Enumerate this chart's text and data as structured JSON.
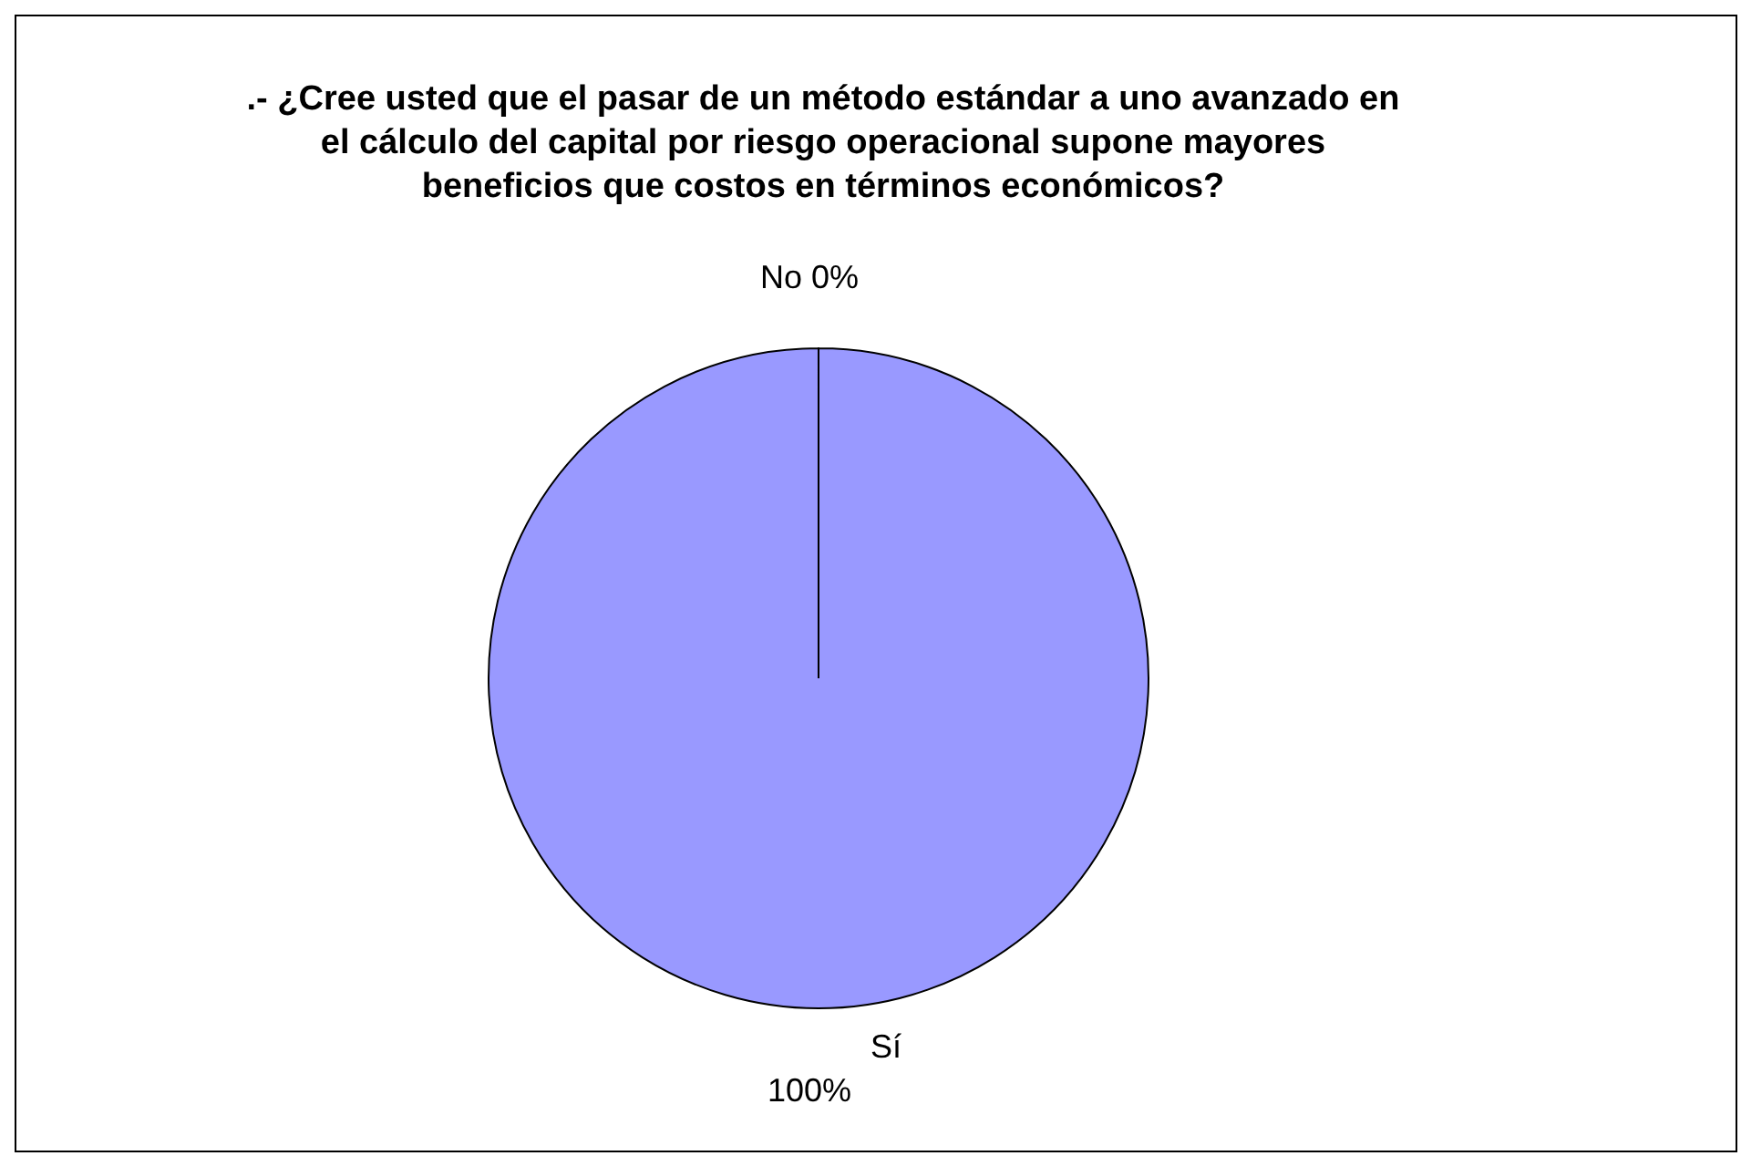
{
  "chart_data": {
    "type": "pie",
    "title": ".- ¿Cree usted que el pasar de un método estándar a uno avanzado en el cálculo del capital por riesgo operacional supone mayores beneficios que costos en términos económicos?",
    "categories": [
      "No",
      "Sí"
    ],
    "values": [
      0,
      100
    ],
    "value_labels": [
      "0%",
      "100%"
    ],
    "colors": [
      "#9999ff",
      "#9999ff"
    ],
    "legend": false
  }
}
